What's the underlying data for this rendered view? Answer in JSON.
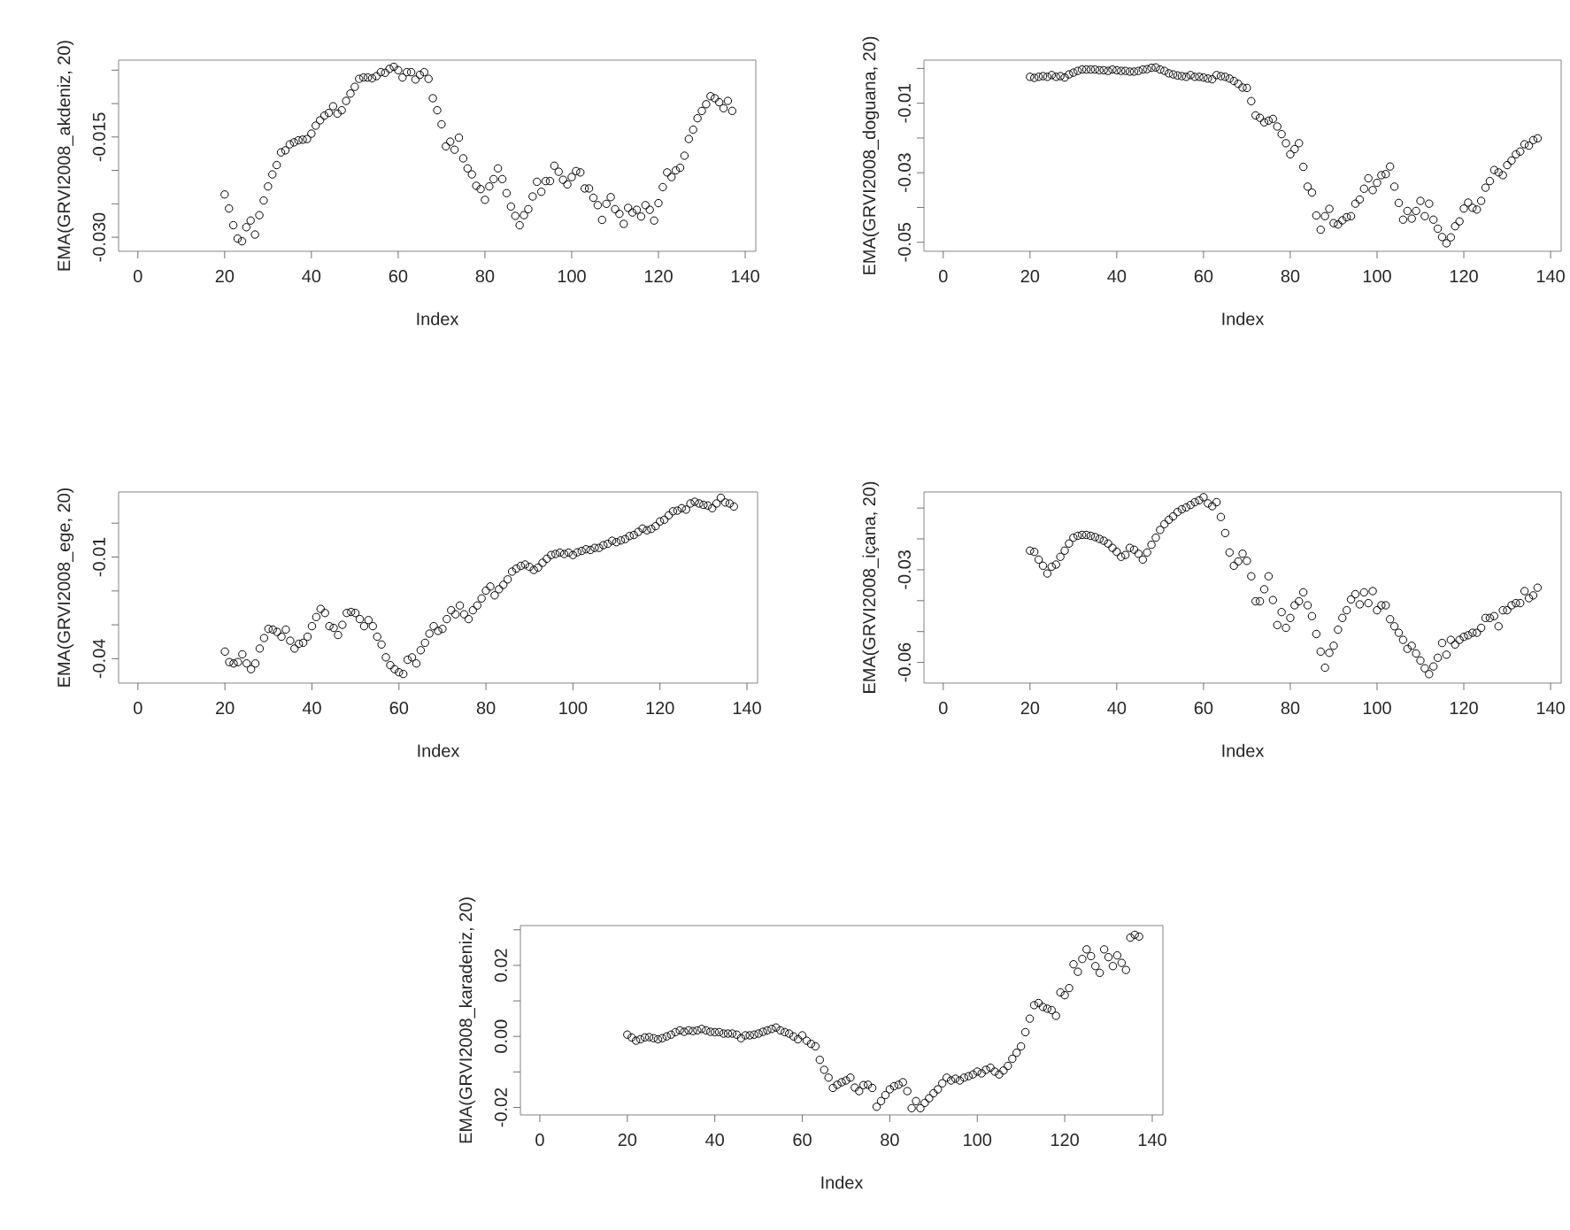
{
  "chart_data": [
    {
      "type": "scatter",
      "xlabel": "Index",
      "ylabel": "EMA(GRVI2008_akdeniz, 20)",
      "color": "#000000",
      "marker": "circle",
      "xlim": [
        -4.44,
        142.44
      ],
      "xticks": [
        0,
        20,
        40,
        60,
        80,
        100,
        120,
        140
      ],
      "ylim": [
        -0.0321,
        -0.0035
      ],
      "yticks": [
        {
          "value": -0.03,
          "label": "-0.030"
        },
        {
          "value": -0.025,
          "label": null
        },
        {
          "value": -0.02,
          "label": null
        },
        {
          "value": -0.015,
          "label": "-0.015"
        },
        {
          "value": -0.01,
          "label": null
        },
        {
          "value": -0.005,
          "label": null
        }
      ],
      "x": [
        20,
        21,
        22,
        23,
        24,
        25,
        26,
        27,
        28,
        29,
        30,
        31,
        32,
        33,
        34,
        35,
        36,
        37,
        38,
        39,
        40,
        41,
        42,
        43,
        44,
        45,
        46,
        47,
        48,
        49,
        50,
        51,
        52,
        53,
        54,
        55,
        56,
        57,
        58,
        59,
        60,
        61,
        62,
        63,
        64,
        65,
        66,
        67,
        68,
        69,
        70,
        71,
        72,
        73,
        74,
        75,
        76,
        77,
        78,
        79,
        80,
        81,
        82,
        83,
        84,
        85,
        86,
        87,
        88,
        89,
        90,
        91,
        92,
        93,
        94,
        95,
        96,
        97,
        98,
        99,
        100,
        101,
        102,
        103,
        104,
        105,
        106,
        107,
        108,
        109,
        110,
        111,
        112,
        113,
        114,
        115,
        116,
        117,
        118,
        119,
        120,
        121,
        122,
        123,
        124,
        125,
        126,
        127,
        128,
        129,
        130,
        131,
        132,
        133,
        134,
        135,
        136,
        137
      ],
      "values": [
        -0.0236,
        -0.0257,
        -0.0282,
        -0.0302,
        -0.0306,
        -0.0285,
        -0.0275,
        -0.0296,
        -0.0267,
        -0.0245,
        -0.0224,
        -0.0206,
        -0.0192,
        -0.0173,
        -0.017,
        -0.0161,
        -0.0158,
        -0.0155,
        -0.0154,
        -0.0153,
        -0.0145,
        -0.0133,
        -0.0125,
        -0.0118,
        -0.0114,
        -0.0104,
        -0.0115,
        -0.011,
        -0.0096,
        -0.0085,
        -0.0075,
        -0.0063,
        -0.0061,
        -0.0061,
        -0.0062,
        -0.0059,
        -0.0053,
        -0.0054,
        -0.0048,
        -0.0045,
        -0.005,
        -0.0061,
        -0.0053,
        -0.0053,
        -0.0064,
        -0.0057,
        -0.0053,
        -0.0063,
        -0.0092,
        -0.011,
        -0.0131,
        -0.0164,
        -0.0157,
        -0.0169,
        -0.0151,
        -0.0182,
        -0.0197,
        -0.0206,
        -0.0223,
        -0.0228,
        -0.0244,
        -0.0224,
        -0.0213,
        -0.0197,
        -0.0213,
        -0.0234,
        -0.0254,
        -0.0268,
        -0.0282,
        -0.0267,
        -0.0258,
        -0.0239,
        -0.0217,
        -0.0232,
        -0.0216,
        -0.0216,
        -0.0193,
        -0.0202,
        -0.0214,
        -0.0221,
        -0.021,
        -0.0201,
        -0.0203,
        -0.0227,
        -0.0227,
        -0.0241,
        -0.0252,
        -0.0274,
        -0.025,
        -0.024,
        -0.0258,
        -0.0265,
        -0.028,
        -0.0256,
        -0.0263,
        -0.0259,
        -0.0269,
        -0.0252,
        -0.0259,
        -0.0275,
        -0.0249,
        -0.0225,
        -0.0203,
        -0.021,
        -0.02,
        -0.0196,
        -0.0178,
        -0.0153,
        -0.0139,
        -0.0122,
        -0.0111,
        -0.0101,
        -0.0089,
        -0.0092,
        -0.0098,
        -0.0107,
        -0.0096,
        -0.0111
      ]
    },
    {
      "type": "scatter",
      "xlabel": "Index",
      "ylabel": "EMA(GRVI2008_doguana, 20)",
      "color": "#000000",
      "marker": "circle",
      "xlim": [
        -4.44,
        142.44
      ],
      "xticks": [
        0,
        20,
        40,
        60,
        80,
        100,
        120,
        140
      ],
      "ylim": [
        -0.0526,
        0.0024
      ],
      "yticks": [
        {
          "value": -0.05,
          "label": "-0.05"
        },
        {
          "value": -0.04,
          "label": null
        },
        {
          "value": -0.03,
          "label": "-0.03"
        },
        {
          "value": -0.02,
          "label": null
        },
        {
          "value": -0.01,
          "label": "-0.01"
        },
        {
          "value": 0,
          "label": null
        }
      ],
      "x": [
        20,
        21,
        22,
        23,
        24,
        25,
        26,
        27,
        28,
        29,
        30,
        31,
        32,
        33,
        34,
        35,
        36,
        37,
        38,
        39,
        40,
        41,
        42,
        43,
        44,
        45,
        46,
        47,
        48,
        49,
        50,
        51,
        52,
        53,
        54,
        55,
        56,
        57,
        58,
        59,
        60,
        61,
        62,
        63,
        64,
        65,
        66,
        67,
        68,
        69,
        70,
        71,
        72,
        73,
        74,
        75,
        76,
        77,
        78,
        79,
        80,
        81,
        82,
        83,
        84,
        85,
        86,
        87,
        88,
        89,
        90,
        91,
        92,
        93,
        94,
        95,
        96,
        97,
        98,
        99,
        100,
        101,
        102,
        103,
        104,
        105,
        106,
        107,
        108,
        109,
        110,
        111,
        112,
        113,
        114,
        115,
        116,
        117,
        118,
        119,
        120,
        121,
        122,
        123,
        124,
        125,
        126,
        127,
        128,
        129,
        130,
        131,
        132,
        133,
        134,
        135,
        136,
        137
      ],
      "values": [
        -0.0024,
        -0.0027,
        -0.0024,
        -0.0022,
        -0.0024,
        -0.0019,
        -0.0024,
        -0.0022,
        -0.0026,
        -0.0017,
        -0.0012,
        -0.0007,
        -0.0003,
        -0.0003,
        -0.0003,
        -0.0003,
        -0.0005,
        -0.0005,
        -0.0007,
        -0.0003,
        -0.0005,
        -0.0007,
        -0.0007,
        -0.0009,
        -0.0009,
        -0.0007,
        -0.0003,
        -0.0002,
        0.0002,
        0.0003,
        -0.0003,
        -0.0007,
        -0.0014,
        -0.0017,
        -0.002,
        -0.0022,
        -0.0024,
        -0.0019,
        -0.0024,
        -0.0024,
        -0.0026,
        -0.0029,
        -0.0031,
        -0.0019,
        -0.0022,
        -0.0024,
        -0.0029,
        -0.0036,
        -0.0044,
        -0.0055,
        -0.0056,
        -0.0094,
        -0.0135,
        -0.0142,
        -0.0155,
        -0.015,
        -0.0145,
        -0.0167,
        -0.0189,
        -0.0215,
        -0.0247,
        -0.0232,
        -0.0215,
        -0.0283,
        -0.034,
        -0.0357,
        -0.0423,
        -0.0464,
        -0.0425,
        -0.0404,
        -0.0445,
        -0.0449,
        -0.0437,
        -0.0428,
        -0.0425,
        -0.0389,
        -0.0377,
        -0.0346,
        -0.0316,
        -0.035,
        -0.0329,
        -0.0307,
        -0.0304,
        -0.0282,
        -0.034,
        -0.0387,
        -0.0435,
        -0.041,
        -0.0432,
        -0.041,
        -0.0381,
        -0.0425,
        -0.0389,
        -0.0435,
        -0.0461,
        -0.0485,
        -0.0503,
        -0.0486,
        -0.0454,
        -0.044,
        -0.0403,
        -0.0386,
        -0.0401,
        -0.0406,
        -0.0381,
        -0.0343,
        -0.0324,
        -0.0292,
        -0.0299,
        -0.0307,
        -0.0278,
        -0.0265,
        -0.0247,
        -0.0239,
        -0.0218,
        -0.0222,
        -0.0206,
        -0.0201
      ]
    },
    {
      "type": "scatter",
      "xlabel": "Index",
      "ylabel": "EMA(GRVI2008_ege, 20)",
      "color": "#000000",
      "marker": "circle",
      "xlim": [
        -4.44,
        142.44
      ],
      "xticks": [
        0,
        20,
        40,
        60,
        80,
        100,
        120,
        140
      ],
      "ylim": [
        -0.0472,
        0.0092
      ],
      "yticks": [
        {
          "value": -0.04,
          "label": "-0.04"
        },
        {
          "value": -0.03,
          "label": null
        },
        {
          "value": -0.02,
          "label": null
        },
        {
          "value": -0.01,
          "label": "-0.01"
        },
        {
          "value": 0,
          "label": null
        }
      ],
      "x": [
        20,
        21,
        22,
        23,
        24,
        25,
        26,
        27,
        28,
        29,
        30,
        31,
        32,
        33,
        34,
        35,
        36,
        37,
        38,
        39,
        40,
        41,
        42,
        43,
        44,
        45,
        46,
        47,
        48,
        49,
        50,
        51,
        52,
        53,
        54,
        55,
        56,
        57,
        58,
        59,
        60,
        61,
        62,
        63,
        64,
        65,
        66,
        67,
        68,
        69,
        70,
        71,
        72,
        73,
        74,
        75,
        76,
        77,
        78,
        79,
        80,
        81,
        82,
        83,
        84,
        85,
        86,
        87,
        88,
        89,
        90,
        91,
        92,
        93,
        94,
        95,
        96,
        97,
        98,
        99,
        100,
        101,
        102,
        103,
        104,
        105,
        106,
        107,
        108,
        109,
        110,
        111,
        112,
        113,
        114,
        115,
        116,
        117,
        118,
        119,
        120,
        121,
        122,
        123,
        124,
        125,
        126,
        127,
        128,
        129,
        130,
        131,
        132,
        133,
        134,
        135,
        136,
        137
      ],
      "values": [
        -0.0379,
        -0.041,
        -0.0414,
        -0.041,
        -0.0387,
        -0.0414,
        -0.0431,
        -0.0414,
        -0.037,
        -0.0339,
        -0.0312,
        -0.0314,
        -0.0321,
        -0.0335,
        -0.0314,
        -0.0347,
        -0.037,
        -0.0356,
        -0.0353,
        -0.0335,
        -0.0304,
        -0.0277,
        -0.0253,
        -0.0265,
        -0.0304,
        -0.0309,
        -0.033,
        -0.03,
        -0.0265,
        -0.0262,
        -0.0265,
        -0.0283,
        -0.0304,
        -0.0286,
        -0.0304,
        -0.0335,
        -0.0358,
        -0.0396,
        -0.0419,
        -0.0431,
        -0.044,
        -0.0445,
        -0.0403,
        -0.0396,
        -0.0414,
        -0.0375,
        -0.0353,
        -0.0326,
        -0.0304,
        -0.0318,
        -0.0312,
        -0.0283,
        -0.0257,
        -0.0269,
        -0.0243,
        -0.0269,
        -0.0283,
        -0.0257,
        -0.0243,
        -0.0222,
        -0.0199,
        -0.0187,
        -0.0213,
        -0.0195,
        -0.0182,
        -0.0166,
        -0.0143,
        -0.0134,
        -0.0126,
        -0.0122,
        -0.0129,
        -0.0138,
        -0.0131,
        -0.0117,
        -0.0105,
        -0.0094,
        -0.0091,
        -0.0087,
        -0.0091,
        -0.0087,
        -0.0094,
        -0.0086,
        -0.0082,
        -0.0077,
        -0.0079,
        -0.0073,
        -0.0073,
        -0.0065,
        -0.0061,
        -0.0052,
        -0.0056,
        -0.0051,
        -0.0047,
        -0.0038,
        -0.0035,
        -0.0026,
        -0.0016,
        -0.0021,
        -0.0017,
        -0.0009,
        0.0005,
        0.001,
        0.0023,
        0.0035,
        0.0037,
        0.0044,
        0.004,
        0.0058,
        0.0063,
        0.0058,
        0.0054,
        0.0052,
        0.0044,
        0.0058,
        0.0075,
        0.0061,
        0.0058,
        0.0049
      ]
    },
    {
      "type": "scatter",
      "xlabel": "Index",
      "ylabel": "EMA(GRVI2008_içana, 20)",
      "color": "#000000",
      "marker": "circle",
      "xlim": [
        -4.44,
        142.44
      ],
      "xticks": [
        0,
        20,
        40,
        60,
        80,
        100,
        120,
        140
      ],
      "ylim": [
        -0.0667,
        -0.0048
      ],
      "yticks": [
        {
          "value": -0.06,
          "label": "-0.06"
        },
        {
          "value": -0.05,
          "label": null
        },
        {
          "value": -0.04,
          "label": null
        },
        {
          "value": -0.03,
          "label": "-0.03"
        },
        {
          "value": -0.02,
          "label": null
        },
        {
          "value": -0.01,
          "label": null
        }
      ],
      "x": [
        20,
        21,
        22,
        23,
        24,
        25,
        26,
        27,
        28,
        29,
        30,
        31,
        32,
        33,
        34,
        35,
        36,
        37,
        38,
        39,
        40,
        41,
        42,
        43,
        44,
        45,
        46,
        47,
        48,
        49,
        50,
        51,
        52,
        53,
        54,
        55,
        56,
        57,
        58,
        59,
        60,
        61,
        62,
        63,
        64,
        65,
        66,
        67,
        68,
        69,
        70,
        71,
        72,
        73,
        74,
        75,
        76,
        77,
        78,
        79,
        80,
        81,
        82,
        83,
        84,
        85,
        86,
        87,
        88,
        89,
        90,
        91,
        92,
        93,
        94,
        95,
        96,
        97,
        98,
        99,
        100,
        101,
        102,
        103,
        104,
        105,
        106,
        107,
        108,
        109,
        110,
        111,
        112,
        113,
        114,
        115,
        116,
        117,
        118,
        119,
        120,
        121,
        122,
        123,
        124,
        125,
        126,
        127,
        128,
        129,
        130,
        131,
        132,
        133,
        134,
        135,
        136,
        137
      ],
      "values": [
        -0.0238,
        -0.0242,
        -0.0267,
        -0.0287,
        -0.0312,
        -0.029,
        -0.0283,
        -0.0258,
        -0.0238,
        -0.0215,
        -0.0196,
        -0.019,
        -0.0187,
        -0.0187,
        -0.019,
        -0.0194,
        -0.02,
        -0.0206,
        -0.0215,
        -0.0229,
        -0.0242,
        -0.0258,
        -0.0252,
        -0.0229,
        -0.0235,
        -0.0248,
        -0.0267,
        -0.0244,
        -0.0219,
        -0.0196,
        -0.0171,
        -0.0152,
        -0.0138,
        -0.0127,
        -0.0113,
        -0.0104,
        -0.0098,
        -0.009,
        -0.0081,
        -0.0075,
        -0.0065,
        -0.0085,
        -0.0094,
        -0.0081,
        -0.0129,
        -0.0181,
        -0.0244,
        -0.0287,
        -0.0273,
        -0.0248,
        -0.0271,
        -0.0321,
        -0.0402,
        -0.0402,
        -0.0363,
        -0.0321,
        -0.0398,
        -0.0479,
        -0.0437,
        -0.0488,
        -0.0456,
        -0.0415,
        -0.0402,
        -0.0373,
        -0.0415,
        -0.045,
        -0.0508,
        -0.0565,
        -0.0617,
        -0.0569,
        -0.0546,
        -0.0494,
        -0.0456,
        -0.0431,
        -0.0396,
        -0.0379,
        -0.0412,
        -0.0373,
        -0.0408,
        -0.0369,
        -0.0431,
        -0.0415,
        -0.0415,
        -0.046,
        -0.0483,
        -0.0504,
        -0.0527,
        -0.0556,
        -0.0546,
        -0.0571,
        -0.0594,
        -0.0619,
        -0.0638,
        -0.0613,
        -0.0585,
        -0.0537,
        -0.0575,
        -0.0527,
        -0.0542,
        -0.0527,
        -0.0517,
        -0.0512,
        -0.0504,
        -0.0504,
        -0.0488,
        -0.0456,
        -0.0456,
        -0.045,
        -0.0483,
        -0.0431,
        -0.0431,
        -0.0415,
        -0.0408,
        -0.0408,
        -0.0369,
        -0.0392,
        -0.0383,
        -0.0358
      ]
    },
    {
      "type": "scatter",
      "xlabel": "Index",
      "ylabel": "EMA(GRVI2008_karadeniz, 20)",
      "color": "#000000",
      "marker": "circle",
      "xlim": [
        -4.44,
        142.44
      ],
      "xticks": [
        0,
        20,
        40,
        60,
        80,
        100,
        120,
        140
      ],
      "ylim": [
        -0.0221,
        0.0312
      ],
      "yticks": [
        {
          "value": -0.02,
          "label": "-0.02"
        },
        {
          "value": -0.01,
          "label": null
        },
        {
          "value": 0,
          "label": "0.00"
        },
        {
          "value": 0.01,
          "label": null
        },
        {
          "value": 0.02,
          "label": "0.02"
        },
        {
          "value": 0.03,
          "label": null
        }
      ],
      "x": [
        20,
        21,
        22,
        23,
        24,
        25,
        26,
        27,
        28,
        29,
        30,
        31,
        32,
        33,
        34,
        35,
        36,
        37,
        38,
        39,
        40,
        41,
        42,
        43,
        44,
        45,
        46,
        47,
        48,
        49,
        50,
        51,
        52,
        53,
        54,
        55,
        56,
        57,
        58,
        59,
        60,
        61,
        62,
        63,
        64,
        65,
        66,
        67,
        68,
        69,
        70,
        71,
        72,
        73,
        74,
        75,
        76,
        77,
        78,
        79,
        80,
        81,
        82,
        83,
        84,
        85,
        86,
        87,
        88,
        89,
        90,
        91,
        92,
        93,
        94,
        95,
        96,
        97,
        98,
        99,
        100,
        101,
        102,
        103,
        104,
        105,
        106,
        107,
        108,
        109,
        110,
        111,
        112,
        113,
        114,
        115,
        116,
        117,
        118,
        119,
        120,
        121,
        122,
        123,
        124,
        125,
        126,
        127,
        128,
        129,
        130,
        131,
        132,
        133,
        134,
        135,
        136,
        137
      ],
      "values": [
        0.0005,
        -0.0003,
        -0.0012,
        -0.0008,
        -0.0003,
        -0.0002,
        -0.0005,
        -0.0008,
        -0.0005,
        0.0,
        0.0005,
        0.0012,
        0.0017,
        0.0013,
        0.0017,
        0.0015,
        0.0017,
        0.0021,
        0.0017,
        0.0013,
        0.0012,
        0.0012,
        0.0008,
        0.0008,
        0.0008,
        0.0005,
        -0.0005,
        0.0003,
        0.0003,
        0.0005,
        0.0008,
        0.0013,
        0.0017,
        0.0021,
        0.0025,
        0.0017,
        0.0012,
        0.0008,
        0.0,
        -0.0008,
        0.0003,
        -0.0012,
        -0.0021,
        -0.0028,
        -0.0066,
        -0.0094,
        -0.0116,
        -0.0145,
        -0.0136,
        -0.0129,
        -0.0124,
        -0.0116,
        -0.0144,
        -0.0154,
        -0.0137,
        -0.0136,
        -0.0145,
        -0.0198,
        -0.0182,
        -0.0165,
        -0.0149,
        -0.014,
        -0.0136,
        -0.0129,
        -0.0154,
        -0.0202,
        -0.0182,
        -0.0202,
        -0.0187,
        -0.0174,
        -0.016,
        -0.0149,
        -0.0132,
        -0.0116,
        -0.0124,
        -0.0119,
        -0.0124,
        -0.0116,
        -0.0112,
        -0.0107,
        -0.0099,
        -0.0104,
        -0.0094,
        -0.0088,
        -0.0099,
        -0.0107,
        -0.0096,
        -0.0083,
        -0.0063,
        -0.0046,
        -0.0028,
        0.0012,
        0.005,
        0.0088,
        0.0094,
        0.0083,
        0.0078,
        0.0074,
        0.0058,
        0.0124,
        0.0116,
        0.0136,
        0.0203,
        0.0182,
        0.0218,
        0.0245,
        0.0226,
        0.0198,
        0.0179,
        0.0245,
        0.0223,
        0.0198,
        0.0228,
        0.0207,
        0.0187,
        0.0278,
        0.0286,
        0.0281
      ]
    }
  ]
}
